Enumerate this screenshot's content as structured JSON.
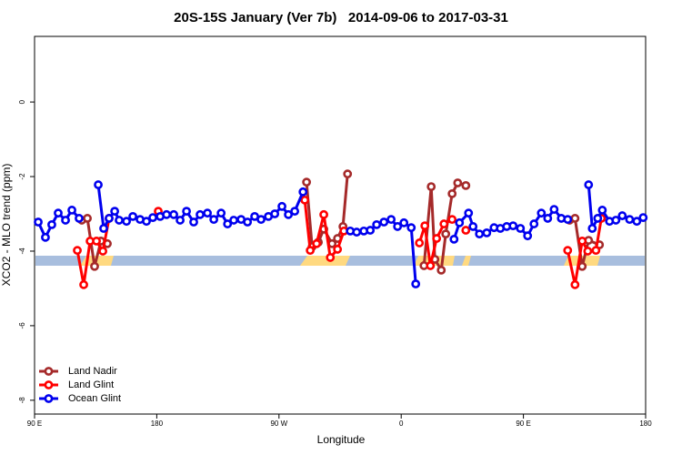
{
  "chart_data": {
    "type": "line",
    "title": "20S-15S January (Ver 7b)   2014-09-06 to 2017-03-31",
    "xlabel": "Longitude",
    "ylabel": "XCO2 - MLO trend (ppm)",
    "xlim": [
      90,
      540
    ],
    "ylim": [
      -8.37,
      1.76
    ],
    "xticks": [
      {
        "value": 90,
        "label": "90 E"
      },
      180,
      {
        "value": 270,
        "label": "90 W"
      },
      {
        "value": 360,
        "label": "0"
      },
      {
        "value": 450,
        "label": "90 E"
      },
      {
        "value": 540,
        "label": "180"
      }
    ],
    "yticks": [
      0,
      -2,
      -4,
      -6,
      -8
    ],
    "legend": "bottom-left",
    "series": [
      {
        "name": "Land Nadir",
        "color": "#a52a2a",
        "x": [
          124.8,
          128.9,
          134.2,
          138.9,
          143.6,
          null,
          290.3,
          294.4,
          299,
          303,
          309.1,
          313.1,
          317.1,
          320.5,
          null,
          376.8,
          382.1,
          384.8,
          389.5,
          392.8,
          397.5,
          401.6,
          407.6,
          null,
          484,
          488,
          493.3,
          498,
          506
        ],
        "values": [
          -3.17,
          -3.12,
          -4.41,
          -3.73,
          -3.8,
          null,
          -2.15,
          -3.88,
          -3.76,
          -3.41,
          -3.8,
          -3.66,
          -3.34,
          -1.93,
          null,
          -4.39,
          -2.27,
          -4.22,
          -4.51,
          -3.54,
          -2.46,
          -2.17,
          -2.24,
          null,
          -3.17,
          -3.12,
          -4.41,
          -3.71,
          -3.83
        ]
      },
      {
        "name": "Land Glint",
        "color": "#ff0000",
        "x": [
          121.5,
          126.2,
          130.9,
          135.6,
          140.3,
          144.9,
          null,
          181.1,
          null,
          289,
          293,
          297.7,
          303,
          307.8,
          313.1,
          317.8,
          null,
          373.4,
          377.4,
          381.5,
          386.1,
          391.5,
          397.5,
          null,
          407.6,
          null,
          482.6,
          488,
          493.3,
          497.4,
          503.4,
          507.4
        ],
        "values": [
          -3.98,
          -4.9,
          -3.73,
          -3.73,
          -4.0,
          -3.12,
          null,
          -2.93,
          null,
          -2.63,
          -3.98,
          -3.8,
          -3.02,
          -4.17,
          -3.95,
          -3.46,
          null,
          -3.78,
          -3.32,
          -4.39,
          -3.66,
          -3.27,
          -3.15,
          null,
          -3.44,
          null,
          -3.98,
          -4.9,
          -3.73,
          -4.0,
          -3.98,
          -3.12
        ]
      },
      {
        "name": "Ocean Glint",
        "color": "#0000ee",
        "x": [
          92.7,
          98,
          102.7,
          107.4,
          112.8,
          117.5,
          122.8,
          null,
          136.9,
          140.9,
          144.9,
          149,
          152.3,
          157.7,
          162.4,
          167.7,
          172.4,
          177.1,
          182.5,
          187.2,
          192.5,
          197.2,
          201.9,
          207.2,
          211.9,
          217.3,
          222,
          227.4,
          232.1,
          236.7,
          242.1,
          246.8,
          252.1,
          256.8,
          262.2,
          266.9,
          272.2,
          276.9,
          281.6,
          287.7,
          null,
          322.5,
          327.2,
          332.5,
          337.2,
          341.9,
          347.3,
          352.6,
          357.3,
          362,
          367.4,
          370.7,
          null,
          398.9,
          402.9,
          409.6,
          412.9,
          417.6,
          423,
          428.4,
          433,
          437.7,
          442.4,
          447.8,
          453.1,
          457.8,
          463.2,
          467.9,
          472.6,
          477.9,
          482.6,
          null,
          498,
          500.7,
          504.7,
          508.1,
          513.4,
          518.1,
          522.8,
          528.2,
          533.5,
          538.2
        ],
        "values": [
          -3.22,
          -3.63,
          -3.29,
          -2.98,
          -3.17,
          -2.9,
          -3.12,
          null,
          -2.22,
          -3.39,
          -3.12,
          -2.93,
          -3.17,
          -3.2,
          -3.07,
          -3.15,
          -3.2,
          -3.1,
          -3.07,
          -3.02,
          -3.02,
          -3.17,
          -2.93,
          -3.22,
          -3.02,
          -2.98,
          -3.15,
          -2.98,
          -3.27,
          -3.17,
          -3.15,
          -3.22,
          -3.07,
          -3.15,
          -3.07,
          -3.0,
          -2.8,
          -3.02,
          -2.93,
          -2.41,
          null,
          -3.46,
          -3.49,
          -3.46,
          -3.44,
          -3.29,
          -3.22,
          -3.15,
          -3.34,
          -3.24,
          -3.37,
          -4.88,
          null,
          -3.68,
          -3.24,
          -2.98,
          -3.34,
          -3.54,
          -3.51,
          -3.37,
          -3.39,
          -3.34,
          -3.32,
          -3.39,
          -3.59,
          -3.27,
          -2.98,
          -3.12,
          -2.88,
          -3.12,
          -3.15,
          null,
          -2.22,
          -3.39,
          -3.12,
          -2.9,
          -3.2,
          -3.17,
          -3.05,
          -3.15,
          -3.2,
          -3.1
        ]
      }
    ]
  }
}
